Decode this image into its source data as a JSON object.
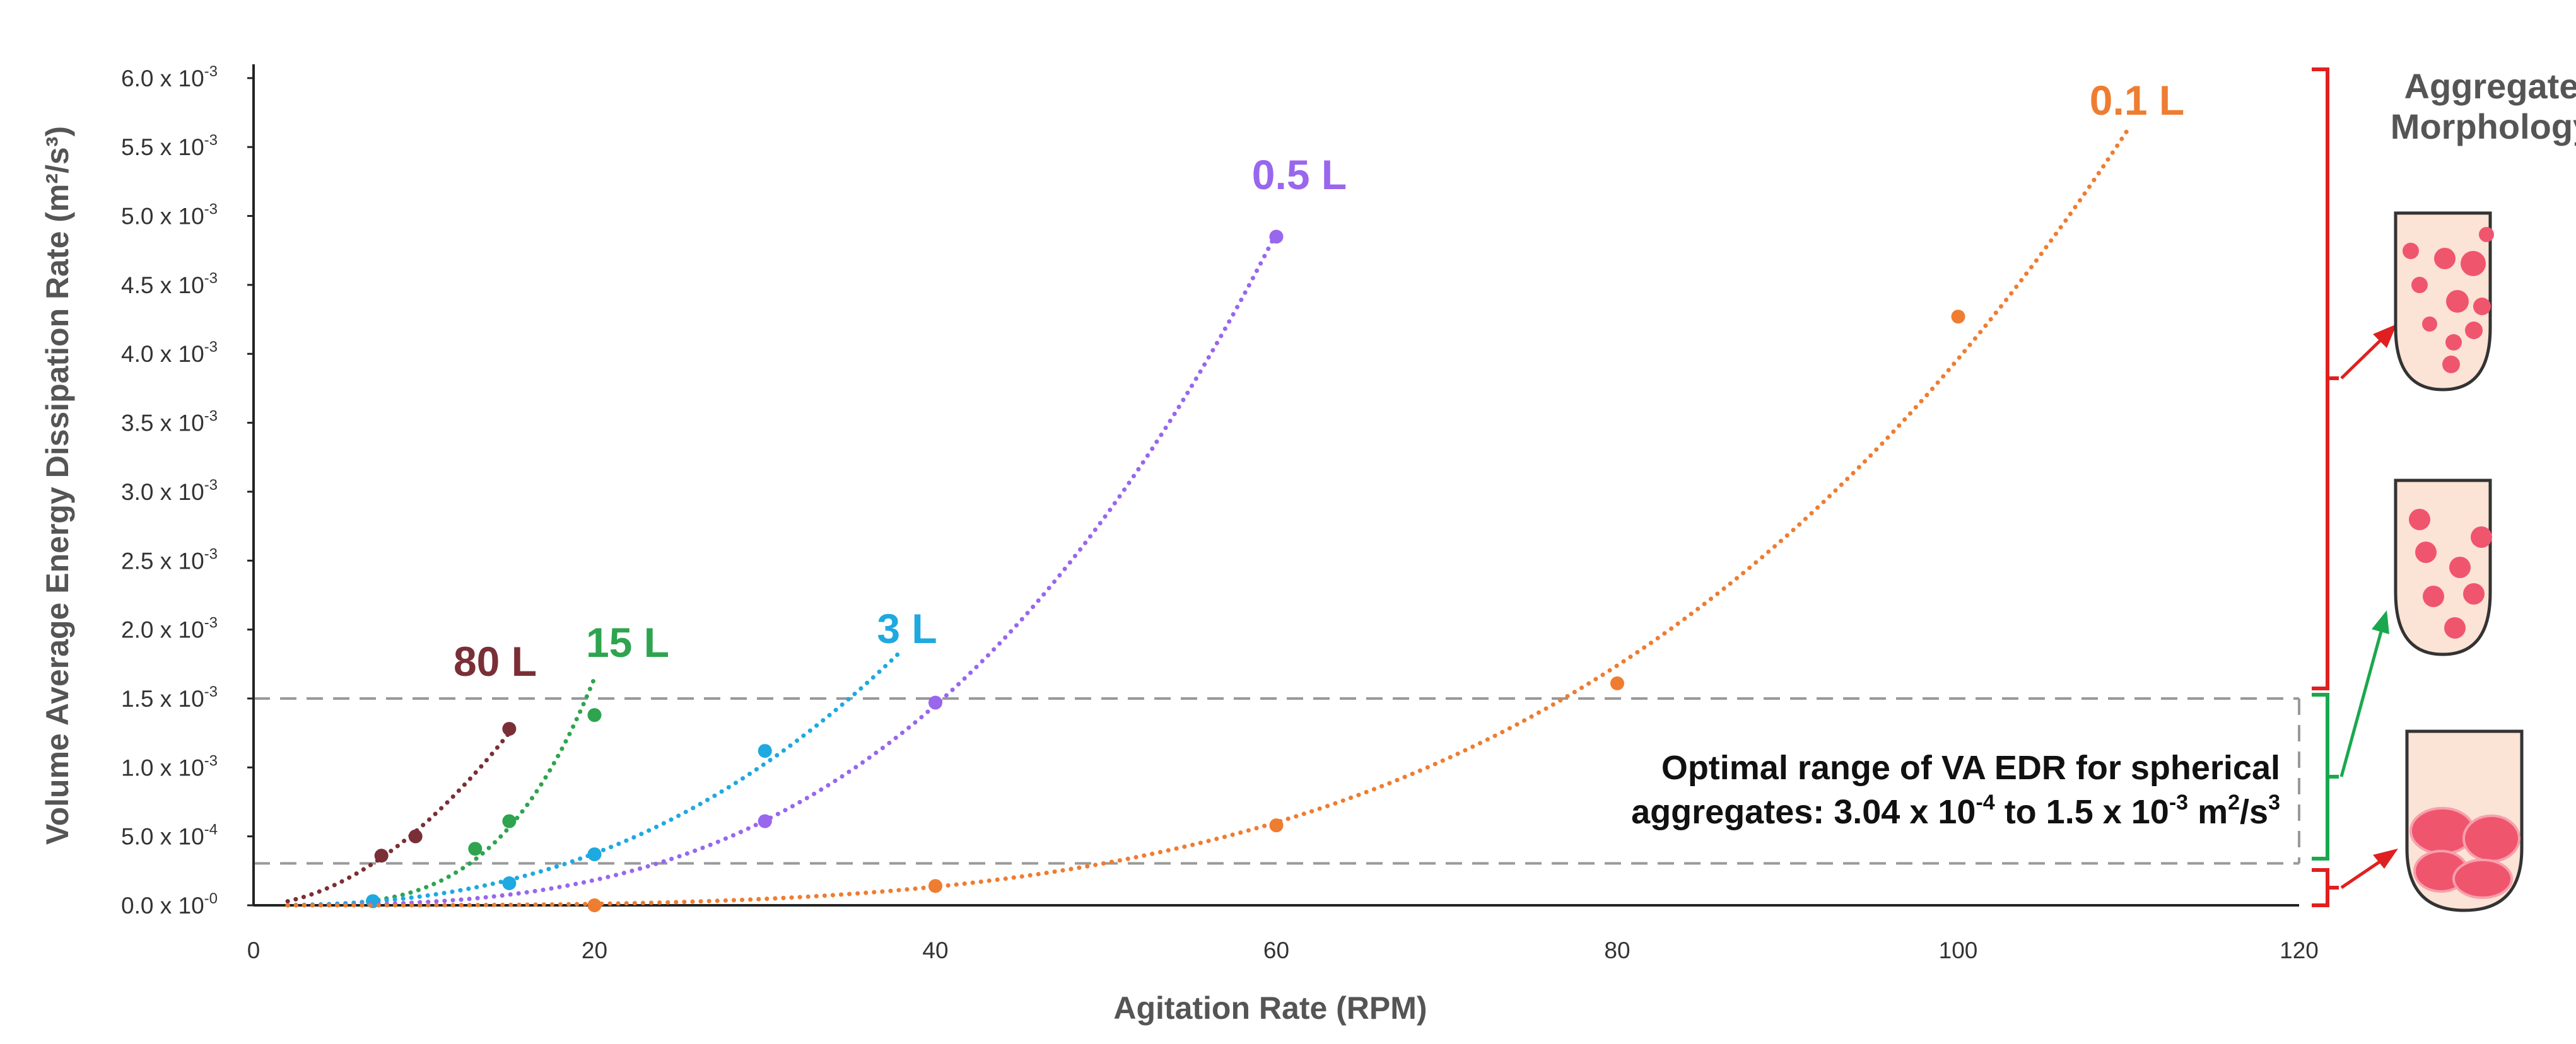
{
  "chart_data": {
    "type": "scatter",
    "title": "",
    "xlabel": "Agitation Rate (RPM)",
    "ylabel": "Volume Average Energy Dissipation Rate (m²/s³)",
    "xlim": [
      0,
      120
    ],
    "ylim": [
      0,
      0.0061
    ],
    "x_ticks": [
      0,
      20,
      40,
      60,
      80,
      100,
      120
    ],
    "y_ticks": [
      {
        "value": 0.0,
        "mantissa": "0.0",
        "exp": "-0"
      },
      {
        "value": 0.0005,
        "mantissa": "5.0",
        "exp": "-4"
      },
      {
        "value": 0.001,
        "mantissa": "1.0",
        "exp": "-3"
      },
      {
        "value": 0.0015,
        "mantissa": "1.5",
        "exp": "-3"
      },
      {
        "value": 0.002,
        "mantissa": "2.0",
        "exp": "-3"
      },
      {
        "value": 0.0025,
        "mantissa": "2.5",
        "exp": "-3"
      },
      {
        "value": 0.003,
        "mantissa": "3.0",
        "exp": "-3"
      },
      {
        "value": 0.0035,
        "mantissa": "3.5",
        "exp": "-3"
      },
      {
        "value": 0.004,
        "mantissa": "4.0",
        "exp": "-3"
      },
      {
        "value": 0.0045,
        "mantissa": "4.5",
        "exp": "-3"
      },
      {
        "value": 0.005,
        "mantissa": "5.0",
        "exp": "-3"
      },
      {
        "value": 0.0055,
        "mantissa": "5.5",
        "exp": "-3"
      },
      {
        "value": 0.006,
        "mantissa": "6.0",
        "exp": "-3"
      }
    ],
    "series": [
      {
        "name": "80 L",
        "color": "#7a2f36",
        "points": [
          [
            7.5,
            0.00036
          ],
          [
            9.5,
            0.0005
          ],
          [
            15,
            0.00128
          ]
        ],
        "trend_end": 15
      },
      {
        "name": "15 L",
        "color": "#2ea44f",
        "points": [
          [
            7,
            3e-05
          ],
          [
            13,
            0.00041
          ],
          [
            15,
            0.00061
          ],
          [
            20,
            0.00138
          ]
        ],
        "trend_end": 20
      },
      {
        "name": "3 L",
        "color": "#1ea9e0",
        "points": [
          [
            7,
            3e-05
          ],
          [
            15,
            0.00016
          ],
          [
            20,
            0.00037
          ],
          [
            30,
            0.00112
          ]
        ],
        "trend_end": 38
      },
      {
        "name": "0.5 L",
        "color": "#9966ee",
        "points": [
          [
            30,
            0.00061
          ],
          [
            40,
            0.00147
          ],
          [
            60,
            0.00485
          ]
        ],
        "trend_end": 60
      },
      {
        "name": "0.1 L",
        "color": "#ee7d31",
        "points": [
          [
            20,
            0.0
          ],
          [
            40,
            0.00014
          ],
          [
            60,
            0.00058
          ],
          [
            80,
            0.00161
          ],
          [
            100,
            0.00427
          ]
        ],
        "trend_end": 110
      }
    ],
    "optimal_range": {
      "low": 0.000304,
      "high": 0.0015,
      "line1": "Optimal range of VA EDR for spherical",
      "line2_a": "aggregates: 3.04 x 10",
      "line2_sup1": "-4",
      "line2_b": " to 1.5 x 10",
      "line2_sup2": "-3",
      "line2_c": " m",
      "line2_sup3": "2",
      "line2_d": "/s",
      "line2_sup4": "3"
    },
    "morphology": {
      "title_line1": "Aggregate",
      "title_line2": "Morphology",
      "bracket_red_color": "#e02020",
      "bracket_green_color": "#1aa84f",
      "well_fill": "#fbe3d6",
      "aggregate_color": "#f0556e"
    }
  }
}
